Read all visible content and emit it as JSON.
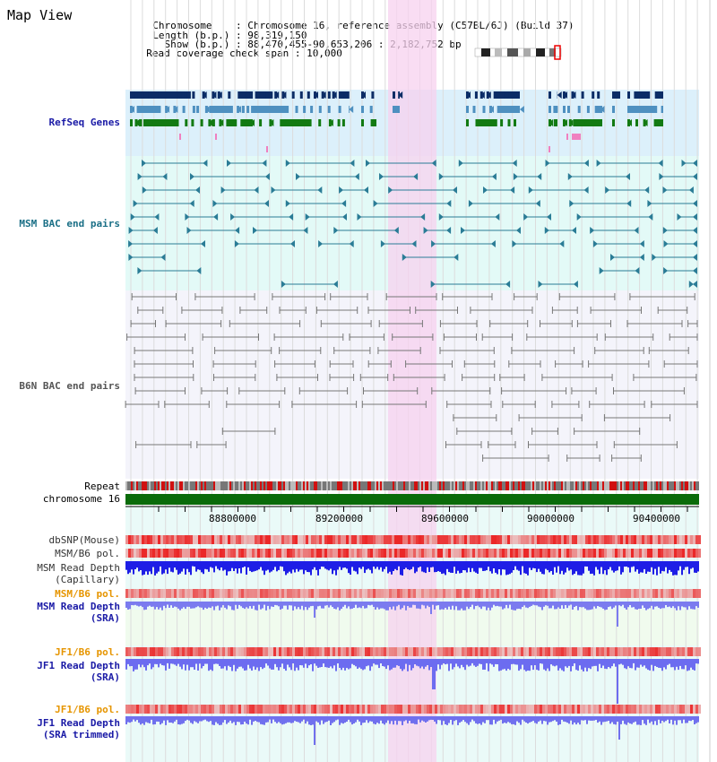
{
  "map_view": {
    "title": "Map View",
    "info": [
      {
        "label": "Chromosome    ",
        "value": "Chromosome 16, reference assembly (C57BL/6J) (Build 37)"
      },
      {
        "label": "Length (b.p.) ",
        "value": "98,319,150"
      },
      {
        "label": "  Show (b.p.) ",
        "value": "88,470,455-90,653,206 : 2,182,752 bp"
      },
      {
        "label": "Read coverage check span ",
        "value": "10,000"
      }
    ]
  },
  "tracks": {
    "refseq": "RefSeq Genes",
    "msm_bac": "MSM BAC end pairs",
    "b6n_bac": "B6N BAC end pairs",
    "repeat": "Repeat",
    "chromosome": "chromosome 16",
    "dbsnp": "dbSNP(Mouse)",
    "msm_b6_pol": "MSM/B6 pol.",
    "msm_read_depth_cap_1": "MSM Read Depth",
    "msm_read_depth_cap_2": "(Capillary)",
    "msm_b6_pol_2": "MSM/B6 pol.",
    "msm_read_depth_sra_1": "MSM Read Depth",
    "msm_read_depth_sra_2": "(SRA)",
    "jf1_b6_pol": "JF1/B6 pol.",
    "jf1_read_depth_sra_1": "JF1 Read Depth",
    "jf1_read_depth_sra_2": "(SRA)",
    "jf1_b6_pol_2": "JF1/B6 pol.",
    "jf1_read_depth_trim_1": "JF1 Read Depth",
    "jf1_read_depth_trim_2": "(SRA trimmed)"
  },
  "scale": {
    "ticks": [
      "88800000",
      "89200000",
      "89600000",
      "90000000",
      "90400000"
    ]
  },
  "colors": {
    "refseq_bg": "#dcf0fb",
    "msm_bg": "#e3faf7",
    "highlight": "#f9dcf4",
    "gene_navy": "#0b2d66",
    "gene_steel": "#4e90c0",
    "gene_green": "#127a12",
    "msm_line": "#2a7c96",
    "b6n_line": "#777777",
    "chrom_green": "#0a6b0a",
    "depth_blue": "#1e1ee6",
    "sra_blue": "#7b7bef"
  }
}
